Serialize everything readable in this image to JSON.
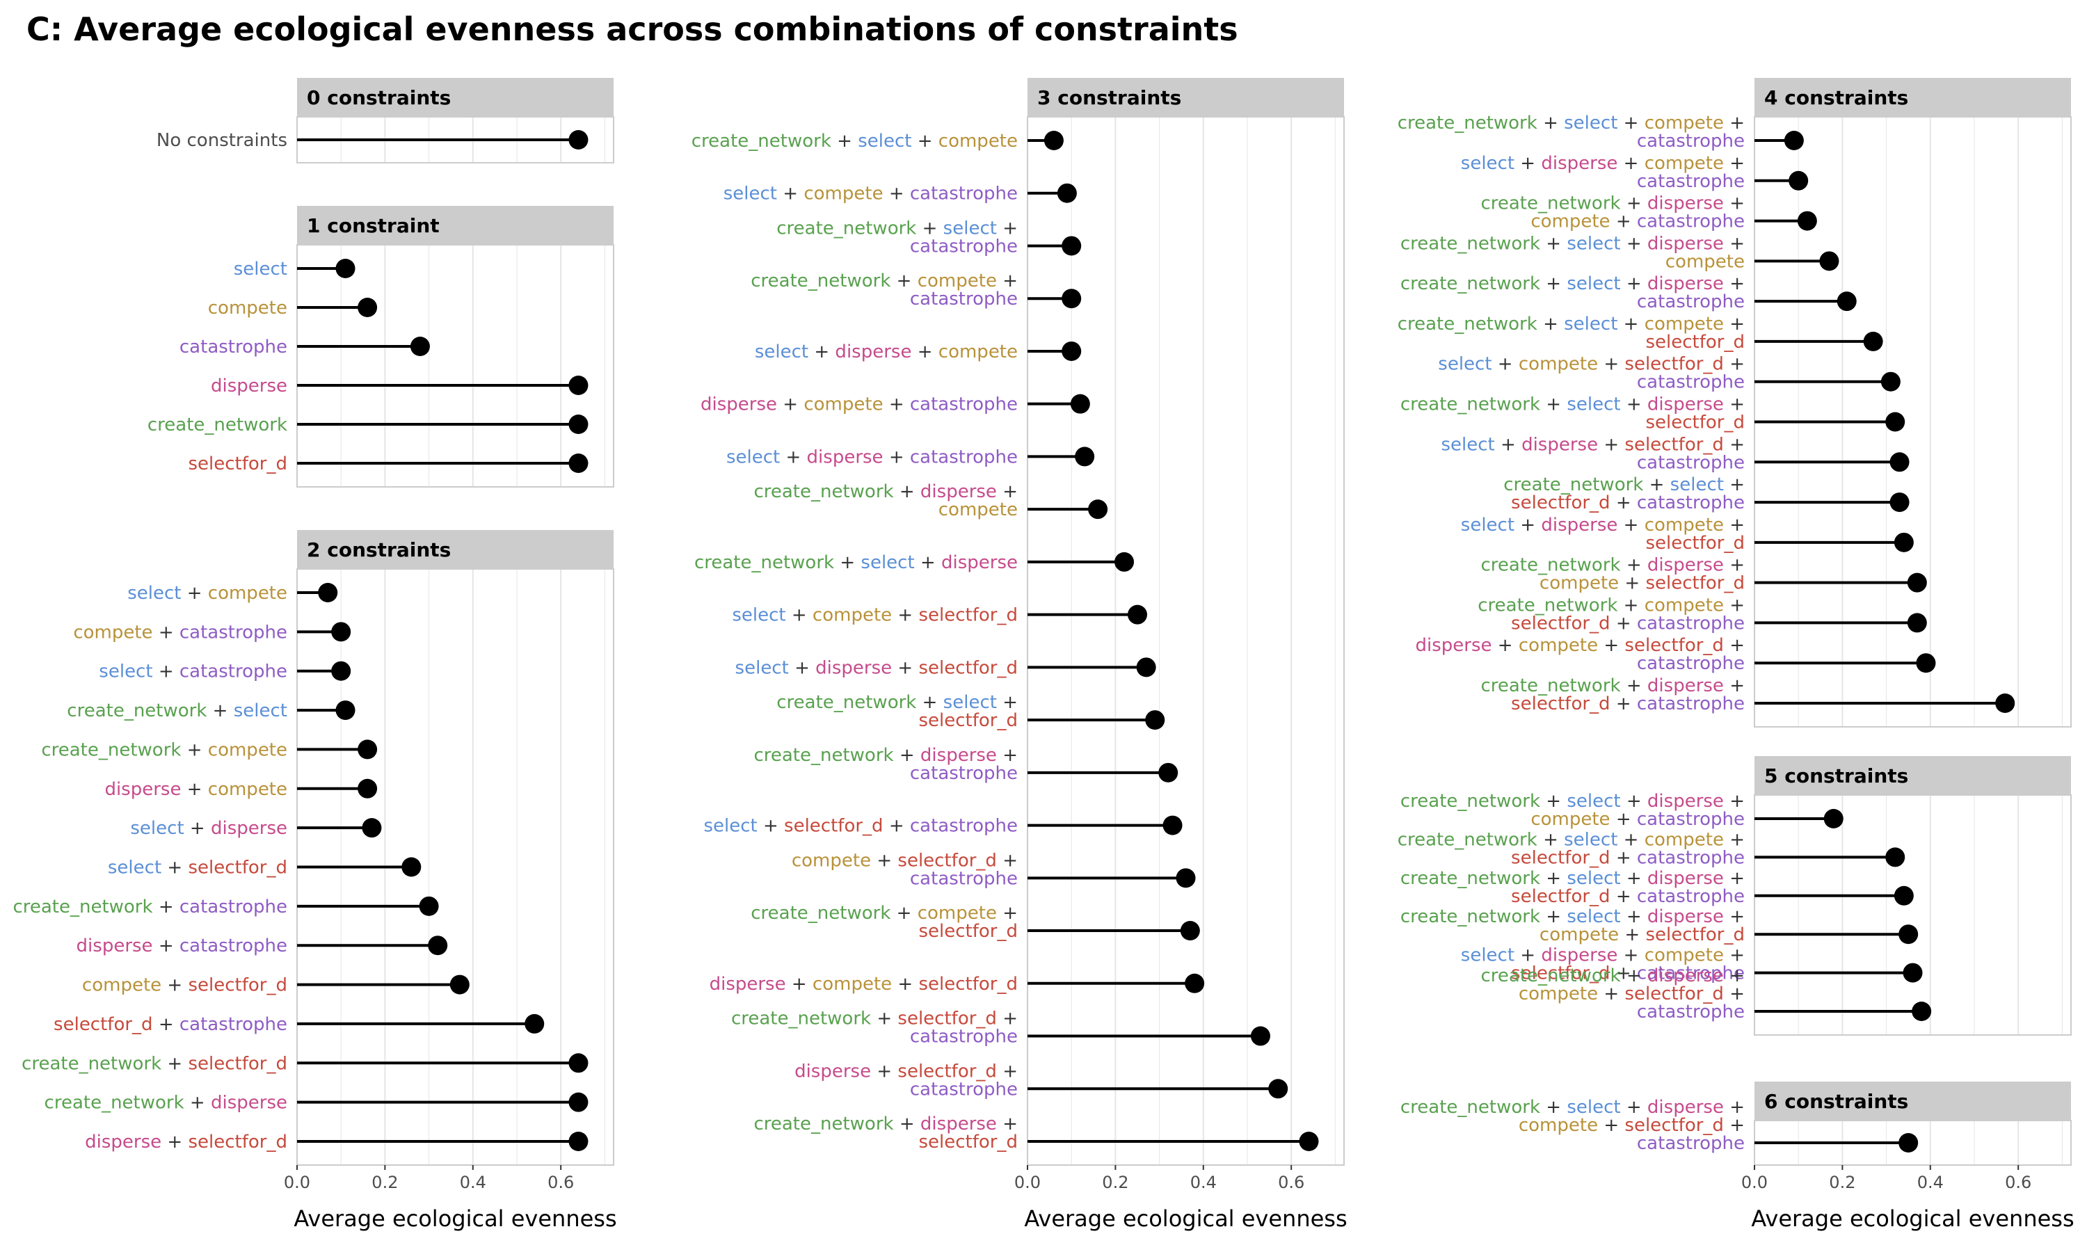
{
  "title": "C: Average ecological evenness across combinations of constraints",
  "colors": {
    "create_network": "#59a14f",
    "select": "#5b8fd6",
    "compete": "#b8923a",
    "catastrophe": "#8e5cc4",
    "disperse": "#c64b8c",
    "selectfor_d": "#c64a3c",
    "plus": "#333333",
    "text": "#4d4d4d",
    "point": "#000000",
    "grid": "#e5e5e5",
    "strip": "#cccccc",
    "panel_border": "#cccccc"
  },
  "chart_data": {
    "type": "lollipop",
    "xlabel": "Average ecological evenness",
    "xlim": [
      0,
      0.72
    ],
    "xticks": [
      "0.0",
      "0.2",
      "0.4",
      "0.6"
    ],
    "columns": [
      {
        "show_xaxis": true,
        "panels": [
          {
            "title": "0 constraints",
            "rows": [
              {
                "label": "No constraints",
                "value": 0.64
              }
            ]
          },
          {
            "title": "1 constraint",
            "rows": [
              {
                "label": "select",
                "value": 0.11
              },
              {
                "label": "compete",
                "value": 0.16
              },
              {
                "label": "catastrophe",
                "value": 0.28
              },
              {
                "label": "disperse",
                "value": 0.64
              },
              {
                "label": "create_network",
                "value": 0.64
              },
              {
                "label": "selectfor_d",
                "value": 0.64
              }
            ]
          },
          {
            "title": "2 constraints",
            "rows": [
              {
                "label": "select + compete",
                "value": 0.07
              },
              {
                "label": "compete + catastrophe",
                "value": 0.1
              },
              {
                "label": "select + catastrophe",
                "value": 0.1
              },
              {
                "label": "create_network + select",
                "value": 0.11
              },
              {
                "label": "create_network + compete",
                "value": 0.16
              },
              {
                "label": "disperse + compete",
                "value": 0.16
              },
              {
                "label": "select + disperse",
                "value": 0.17
              },
              {
                "label": "select + selectfor_d",
                "value": 0.26
              },
              {
                "label": "create_network + catastrophe",
                "value": 0.3
              },
              {
                "label": "disperse + catastrophe",
                "value": 0.32
              },
              {
                "label": "compete + selectfor_d",
                "value": 0.37
              },
              {
                "label": "selectfor_d + catastrophe",
                "value": 0.54
              },
              {
                "label": "create_network + selectfor_d",
                "value": 0.64
              },
              {
                "label": "create_network + disperse",
                "value": 0.64
              },
              {
                "label": "disperse + selectfor_d",
                "value": 0.64
              }
            ]
          }
        ]
      },
      {
        "show_xaxis": true,
        "panels": [
          {
            "title": "3 constraints",
            "rows": [
              {
                "label": "create_network + select + compete",
                "value": 0.06
              },
              {
                "label": "select + compete + catastrophe",
                "value": 0.09
              },
              {
                "label": "create_network + select + catastrophe",
                "value": 0.1
              },
              {
                "label": "create_network + compete + catastrophe",
                "value": 0.1
              },
              {
                "label": "select + disperse + compete",
                "value": 0.1
              },
              {
                "label": "disperse + compete + catastrophe",
                "value": 0.12
              },
              {
                "label": "select + disperse + catastrophe",
                "value": 0.13
              },
              {
                "label": "create_network + disperse + compete",
                "value": 0.16
              },
              {
                "label": "create_network + select + disperse",
                "value": 0.22
              },
              {
                "label": "select + compete + selectfor_d",
                "value": 0.25
              },
              {
                "label": "select + disperse + selectfor_d",
                "value": 0.27
              },
              {
                "label": "create_network + select + selectfor_d",
                "value": 0.29
              },
              {
                "label": "create_network + disperse + catastrophe",
                "value": 0.32
              },
              {
                "label": "select + selectfor_d + catastrophe",
                "value": 0.33
              },
              {
                "label": "compete + selectfor_d + catastrophe",
                "value": 0.36
              },
              {
                "label": "create_network + compete + selectfor_d",
                "value": 0.37
              },
              {
                "label": "disperse + compete + selectfor_d",
                "value": 0.38
              },
              {
                "label": "create_network + selectfor_d + catastrophe",
                "value": 0.53
              },
              {
                "label": "disperse + selectfor_d + catastrophe",
                "value": 0.57
              },
              {
                "label": "create_network + disperse + selectfor_d",
                "value": 0.64
              }
            ]
          }
        ]
      },
      {
        "show_xaxis": true,
        "panels": [
          {
            "title": "4 constraints",
            "rows": [
              {
                "label": "create_network + select + compete + catastrophe",
                "value": 0.09
              },
              {
                "label": "select + disperse + compete + catastrophe",
                "value": 0.1
              },
              {
                "label": "create_network + disperse + compete + catastrophe",
                "value": 0.12
              },
              {
                "label": "create_network + select + disperse + compete",
                "value": 0.17
              },
              {
                "label": "create_network + select + disperse + catastrophe",
                "value": 0.21
              },
              {
                "label": "create_network + select + compete + selectfor_d",
                "value": 0.27
              },
              {
                "label": "select + compete + selectfor_d + catastrophe",
                "value": 0.31
              },
              {
                "label": "create_network + select + disperse + selectfor_d",
                "value": 0.32
              },
              {
                "label": "select + disperse + selectfor_d + catastrophe",
                "value": 0.33
              },
              {
                "label": "create_network + select + selectfor_d + catastrophe",
                "value": 0.33
              },
              {
                "label": "select + disperse + compete + selectfor_d",
                "value": 0.34
              },
              {
                "label": "create_network + disperse + compete + selectfor_d",
                "value": 0.37
              },
              {
                "label": "create_network + compete + selectfor_d + catastrophe",
                "value": 0.37
              },
              {
                "label": "disperse + compete + selectfor_d + catastrophe",
                "value": 0.39
              },
              {
                "label": "create_network + disperse + selectfor_d + catastrophe",
                "value": 0.57
              }
            ]
          },
          {
            "title": "5 constraints",
            "rows": [
              {
                "label": "create_network + select + disperse + compete + catastrophe",
                "value": 0.18
              },
              {
                "label": "create_network + select + compete + selectfor_d + catastrophe",
                "value": 0.32
              },
              {
                "label": "create_network + select + disperse + selectfor_d + catastrophe",
                "value": 0.34
              },
              {
                "label": "create_network + select + disperse + compete + selectfor_d",
                "value": 0.35
              },
              {
                "label": "select + disperse + compete + selectfor_d + catastrophe",
                "value": 0.36
              },
              {
                "label": "create_network + disperse + compete + selectfor_d + catastrophe",
                "value": 0.38
              }
            ]
          },
          {
            "title": "6 constraints",
            "rows": [
              {
                "label": "create_network + select + disperse + compete + selectfor_d + catastrophe",
                "value": 0.35
              }
            ]
          }
        ]
      }
    ]
  }
}
